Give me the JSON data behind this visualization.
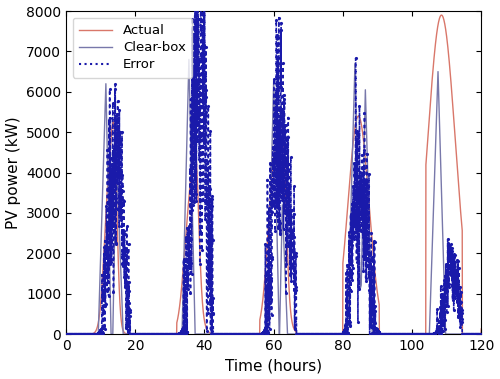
{
  "xlabel": "Time (hours)",
  "ylabel": "PV power (kW)",
  "xlim": [
    0,
    120
  ],
  "ylim": [
    0,
    8000
  ],
  "xticks": [
    0,
    20,
    40,
    60,
    80,
    100,
    120
  ],
  "yticks": [
    0,
    1000,
    2000,
    3000,
    4000,
    5000,
    6000,
    7000,
    8000
  ],
  "actual_color": "#D9776A",
  "clearbox_color": "#7878AA",
  "error_color": "#1A1AAA",
  "legend_labels": [
    "Actual",
    "Clear-box",
    "Error"
  ],
  "figsize": [
    5.0,
    3.79
  ],
  "dpi": 100
}
